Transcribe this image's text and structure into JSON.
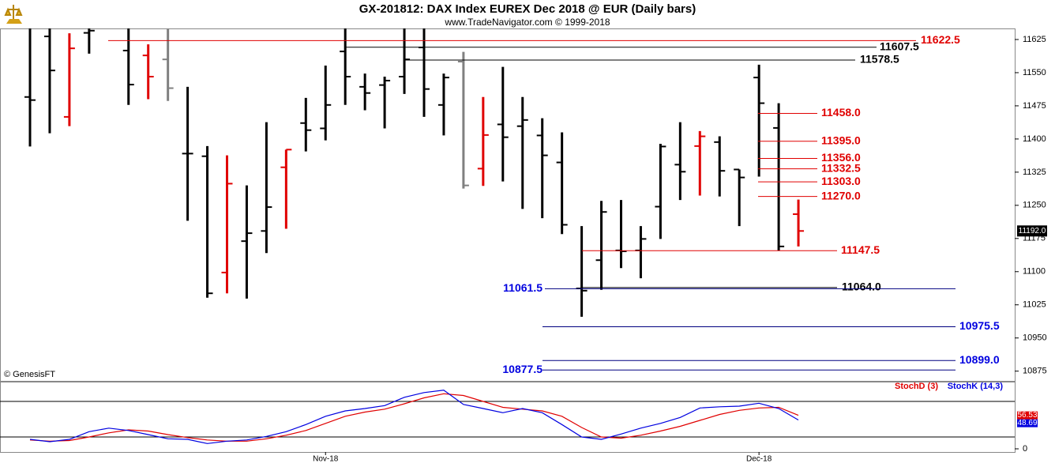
{
  "chart_data": [
    {
      "type": "ohlc",
      "title": "GX-201812:  DAX Index EUREX Dec 2018 @ EUR  (Daily bars)",
      "subtitle": "www.TradeNavigator.com © 1999-2018",
      "watermark": "© GenesisFT",
      "open": [
        11495,
        11632,
        11450,
        11640,
        null,
        11600,
        11589,
        11580,
        11367,
        11361,
        11098,
        11169,
        11192,
        11336,
        11436,
        11424,
        11598,
        11518,
        11522,
        11541,
        11607,
        11477,
        11575,
        11333,
        11433,
        11429,
        11408,
        11347,
        11062,
        11126,
        11148,
        11148,
        11247,
        11342,
        11384,
        11393,
        11331,
        11539,
        11425,
        11230
      ],
      "high": [
        11680,
        11680,
        11639,
        11660,
        null,
        11680,
        11614,
        11680,
        11518,
        11384,
        11363,
        11295,
        11438,
        11376,
        11493,
        11566,
        11660,
        11548,
        11541,
        11660,
        11660,
        11548,
        11597,
        11495,
        11563,
        11495,
        11447,
        11415,
        11203,
        11260,
        11262,
        11203,
        11389,
        11438,
        11418,
        11406,
        11331,
        11568,
        11481,
        11263
      ],
      "low": [
        11383,
        11413,
        11429,
        11593,
        null,
        11477,
        11490,
        11486,
        11215,
        11041,
        11051,
        11039,
        11142,
        11197,
        11372,
        11397,
        11477,
        11465,
        11424,
        11502,
        11450,
        11408,
        11288,
        11294,
        11304,
        11242,
        11221,
        11185,
        10998,
        11059,
        11108,
        11085,
        11174,
        11262,
        11272,
        11270,
        11203,
        11315,
        11147.5,
        11157
      ],
      "close": [
        11488,
        11555,
        11605,
        11645,
        null,
        11523,
        11541,
        11515,
        11367,
        11051,
        11299,
        11187,
        11246,
        11376,
        11420,
        11477,
        11541,
        11504,
        11532,
        11580,
        11513,
        11539,
        11295,
        11409,
        11404,
        11443,
        11363,
        11206,
        11057,
        11235,
        11146,
        11174,
        11383,
        11326,
        11406,
        11328,
        11313,
        11481,
        11157,
        11192
      ],
      "bar_colors": [
        "#000000",
        "#000000",
        "#e00000",
        "#000000",
        "#000000",
        "#000000",
        "#e00000",
        "#808080",
        "#000000",
        "#000000",
        "#e00000",
        "#000000",
        "#000000",
        "#e00000",
        "#000000",
        "#000000",
        "#000000",
        "#000000",
        "#000000",
        "#000000",
        "#000000",
        "#000000",
        "#808080",
        "#e00000",
        "#000000",
        "#000000",
        "#000000",
        "#000000",
        "#000000",
        "#000000",
        "#000000",
        "#000000",
        "#000000",
        "#000000",
        "#e00000",
        "#000000",
        "#000000",
        "#000000",
        "#000000",
        "#e00000"
      ],
      "ylim": [
        10853,
        11650
      ],
      "yticks": [
        10875,
        10950,
        11025,
        11100,
        11175,
        11250,
        11325,
        11400,
        11475,
        11550,
        11625
      ],
      "levels": [
        {
          "value": 11622.5,
          "label": "11622.5",
          "color": "#e00000",
          "line_color": "#e00000"
        },
        {
          "value": 11607.5,
          "label": "11607.5",
          "color": "#000000",
          "line_color": "#000000"
        },
        {
          "value": 11578.5,
          "label": "11578.5",
          "color": "#000000",
          "line_color": "#000000"
        },
        {
          "value": 11458,
          "label": "11458.0",
          "color": "#e00000",
          "line_color": "#e00000"
        },
        {
          "value": 11395,
          "label": "11395.0",
          "color": "#e00000",
          "line_color": "#e00000"
        },
        {
          "value": 11356,
          "label": "11356.0",
          "color": "#e00000",
          "line_color": "#e00000"
        },
        {
          "value": 11332.5,
          "label": "11332.5",
          "color": "#e00000",
          "line_color": "#e00000"
        },
        {
          "value": 11303,
          "label": "11303.0",
          "color": "#e00000",
          "line_color": "#e00000"
        },
        {
          "value": 11270,
          "label": "11270.0",
          "color": "#e00000",
          "line_color": "#e00000"
        },
        {
          "value": 11147.5,
          "label": "11147.5",
          "color": "#e00000",
          "line_color": "#e00000"
        },
        {
          "value": 11064,
          "label": "11064.0",
          "color": "#000000",
          "line_color": "#000000"
        },
        {
          "value": 11061.5,
          "label": "11061.5",
          "color": "#0000e0",
          "line_color": "#000080"
        },
        {
          "value": 10975.5,
          "label": "10975.5",
          "color": "#0000e0",
          "line_color": "#000080"
        },
        {
          "value": 10899,
          "label": "10899.0",
          "color": "#0000e0",
          "line_color": "#000080"
        },
        {
          "value": 10877.5,
          "label": "10877.5",
          "color": "#0000e0",
          "line_color": "#000080"
        }
      ],
      "last_price": {
        "value": 11192,
        "label": "11192.0"
      }
    },
    {
      "type": "line",
      "categories": [
        null,
        null,
        null,
        null,
        null,
        null,
        null,
        null,
        null,
        null,
        null,
        null,
        null,
        null,
        null,
        "Nov-18",
        null,
        null,
        null,
        null,
        null,
        null,
        null,
        null,
        null,
        null,
        null,
        null,
        null,
        null,
        null,
        null,
        null,
        null,
        null,
        null,
        null,
        "Dec-18",
        null,
        null
      ],
      "series": [
        {
          "name": "StochD (3)",
          "color": "#e00000",
          "values": [
            15,
            13,
            14,
            20,
            27,
            32,
            30,
            24,
            19,
            15,
            13,
            13,
            17,
            23,
            31,
            43,
            55,
            62,
            67,
            76,
            86,
            93,
            90,
            80,
            70,
            67,
            64,
            55,
            36,
            20,
            18,
            23,
            30,
            38,
            48,
            58,
            65,
            69,
            70,
            56.53
          ]
        },
        {
          "name": "StochK (14,3)",
          "color": "#0000e0",
          "values": [
            16,
            12,
            16,
            29,
            35,
            31,
            24,
            17,
            16,
            9,
            13,
            15,
            21,
            29,
            41,
            55,
            64,
            68,
            73,
            87,
            95,
            99,
            75,
            68,
            61,
            68,
            61,
            41,
            20,
            16,
            25,
            35,
            43,
            53,
            69,
            71,
            72,
            77,
            68,
            48.69
          ]
        }
      ],
      "ylim": [
        0,
        100
      ],
      "yticks": [
        0
      ],
      "reference_lines": [
        20,
        80
      ]
    }
  ]
}
